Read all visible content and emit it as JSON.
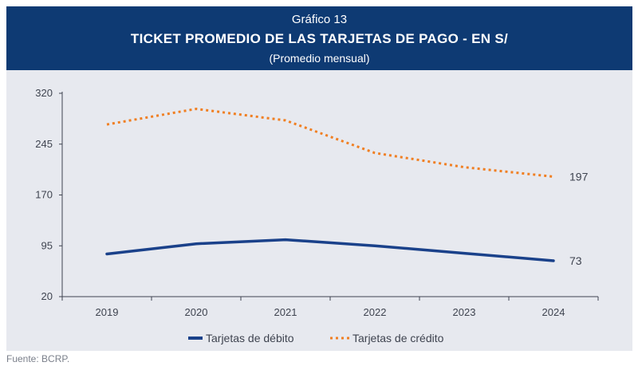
{
  "header": {
    "figure_number": "Gráfico 13",
    "title": "TICKET PROMEDIO DE LAS TARJETAS DE PAGO - EN S/",
    "subtitle": "(Promedio mensual)"
  },
  "source": "Fuente: BCRP.",
  "colors": {
    "header_bg": "#0e3a73",
    "panel_bg": "#e7e9ef",
    "debit": "#1a418a",
    "credit": "#f07f22"
  },
  "chart_data": {
    "type": "line",
    "categories": [
      "2019",
      "2020",
      "2021",
      "2022",
      "2023",
      "2024"
    ],
    "ylim": [
      20,
      320
    ],
    "yticks": [
      "20",
      "95",
      "170",
      "245",
      "320"
    ],
    "grid": false,
    "legend_position": "bottom-center",
    "series": [
      {
        "name": "Tarjetas de débito",
        "values": [
          83,
          98,
          104,
          95,
          84,
          73
        ],
        "style": "solid",
        "color": "#1a418a",
        "end_label": "73"
      },
      {
        "name": "Tarjetas de crédito",
        "values": [
          274,
          297,
          280,
          232,
          211,
          197
        ],
        "style": "dotted",
        "color": "#f07f22",
        "end_label": "197"
      }
    ]
  }
}
